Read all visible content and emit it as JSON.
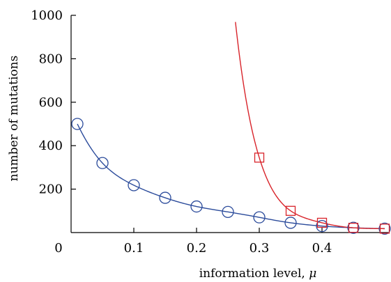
{
  "chart_data": {
    "type": "scatter",
    "title": "",
    "xlabel": "information level,",
    "xlabel_symbol": "μ",
    "ylabel": "number of mutations",
    "xlim": [
      0,
      0.5
    ],
    "ylim": [
      0,
      1000
    ],
    "x_ticks": [
      {
        "value": 0,
        "label": "0"
      },
      {
        "value": 0.1,
        "label": "0.1"
      },
      {
        "value": 0.2,
        "label": "0.2"
      },
      {
        "value": 0.3,
        "label": "0.3"
      },
      {
        "value": 0.4,
        "label": "0.4"
      }
    ],
    "y_ticks": [
      {
        "value": 200,
        "label": "200"
      },
      {
        "value": 400,
        "label": "400"
      },
      {
        "value": 600,
        "label": "600"
      },
      {
        "value": 800,
        "label": "800"
      },
      {
        "value": 1000,
        "label": "1000"
      }
    ],
    "grid": false,
    "legend": "none",
    "series": [
      {
        "marker": "circle",
        "color": "#2b4b9b",
        "x": [
          0.01,
          0.05,
          0.1,
          0.15,
          0.2,
          0.25,
          0.3,
          0.35,
          0.4,
          0.45,
          0.5
        ],
        "y": [
          500,
          320,
          218,
          160,
          120,
          95,
          70,
          45,
          30,
          22,
          18
        ],
        "fit": {
          "x_start": 0.01,
          "x_end": 0.5
        }
      },
      {
        "marker": "square",
        "color": "#d8232a",
        "x": [
          0.3,
          0.35,
          0.4,
          0.45,
          0.5
        ],
        "y": [
          345,
          100,
          45,
          22,
          18
        ],
        "fit": {
          "x_start": 0.262,
          "x_end": 0.5
        }
      }
    ]
  }
}
